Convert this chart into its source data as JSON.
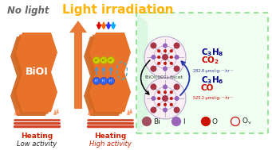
{
  "title_left": "No light",
  "title_right": "Light irradiation",
  "title_left_color": "#666666",
  "title_right_color": "#FFB300",
  "bioi_label": "BiOI",
  "heating_label": "Heating",
  "low_activity": "Low activity",
  "high_activity": "High activity",
  "facet_label": "BiOI(001) facet",
  "c3h8": "C₃H₈",
  "co2": "CO₂",
  "c3h6": "C₃H₆",
  "co": "CO",
  "yield1": "282.8 μmol·g₁⁻¹·hr⁻¹",
  "yield2": "525.2 μmol·g₁⁻¹·hr⁻¹",
  "legend_items": [
    "Bi",
    "I",
    "O",
    "Ov"
  ],
  "legend_colors": [
    "#A05060",
    "#9966BB",
    "#CC1100",
    "#FFFFFF"
  ],
  "legend_edge_colors": [
    "#A05060",
    "#9966BB",
    "#CC1100",
    "#CC1100"
  ],
  "body_color_main": "#E8722A",
  "body_color_mid": "#D86820",
  "body_color_dark": "#C85810",
  "box_bg": "#F0FFF2",
  "box_edge": "#88DD88",
  "arrow_color": "#E8722A",
  "light_colors": [
    "#EE2200",
    "#FF8800",
    "#2244FF",
    "#44AAFF"
  ],
  "electron_color": "#DDCC00",
  "hole_color": "#2266EE",
  "background_color": "#FFFFFF",
  "blue_arrow_color": "#4499DD",
  "dashed_oval_color": "#44AACC"
}
